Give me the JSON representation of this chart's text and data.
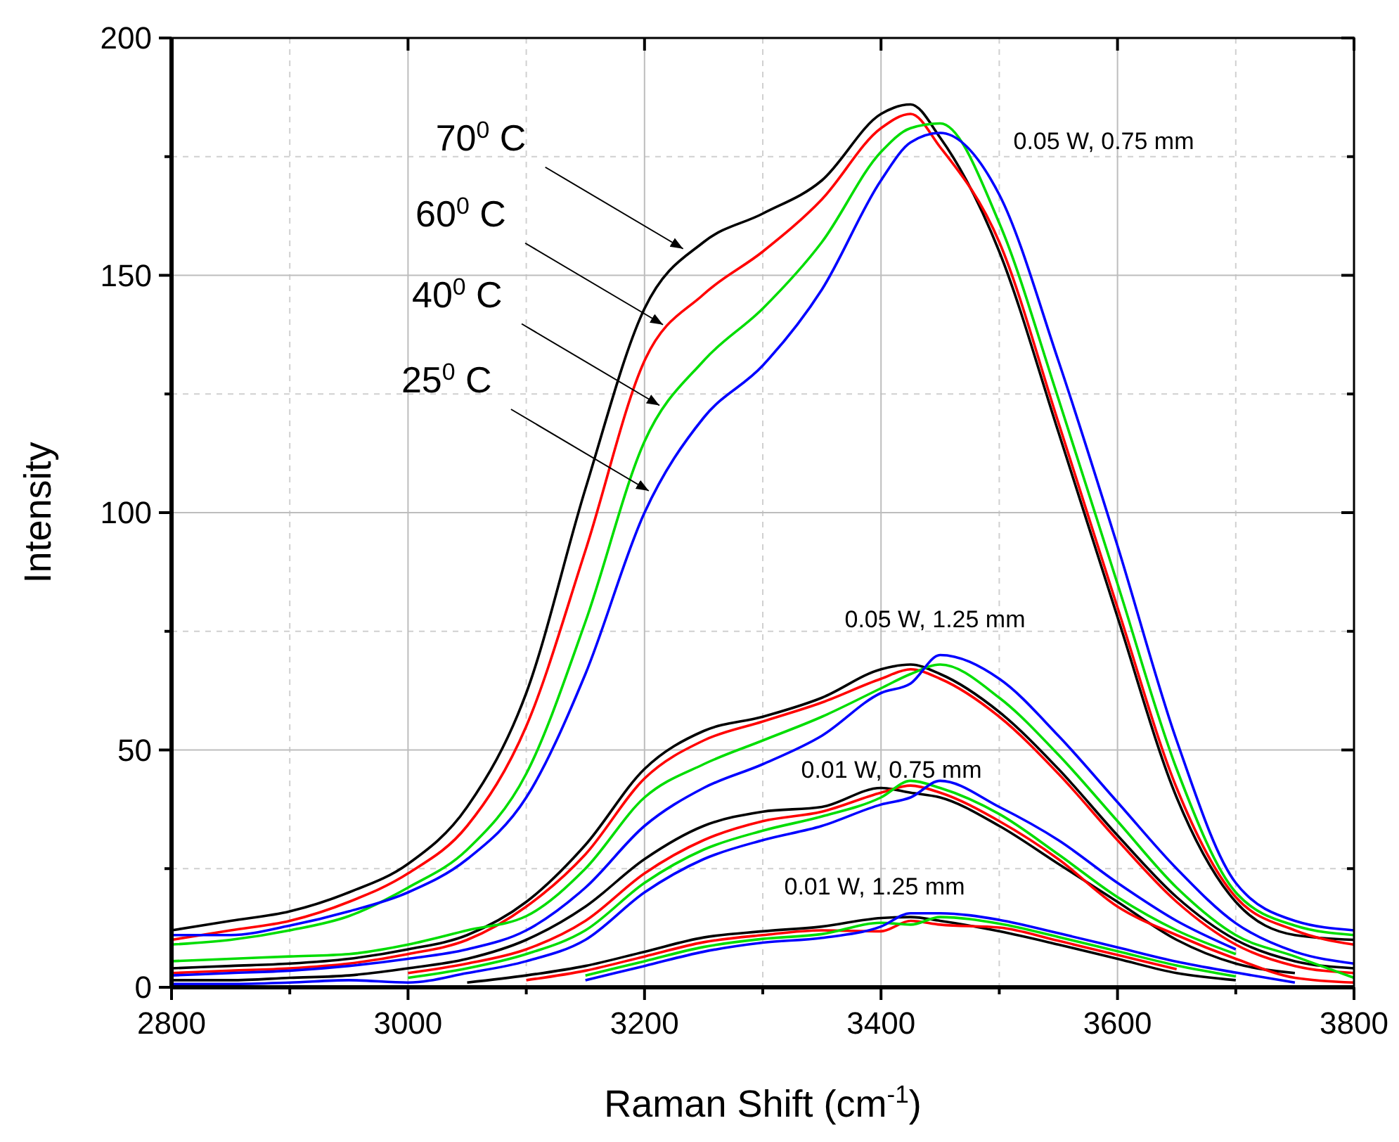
{
  "chart_data": {
    "type": "line",
    "xlabel": "Raman Shift (cm$^{-1}$)",
    "ylabel": "Intensity",
    "x": [
      2800,
      2850,
      2900,
      2950,
      3000,
      3050,
      3100,
      3150,
      3200,
      3250,
      3300,
      3350,
      3400,
      3425,
      3450,
      3500,
      3550,
      3600,
      3650,
      3700,
      3750,
      3800
    ],
    "xlim": [
      2800,
      3800
    ],
    "xticks": [
      2800,
      3000,
      3200,
      3400,
      3600,
      3800
    ],
    "ylim": [
      0,
      200
    ],
    "yticks": [
      0,
      50,
      100,
      150,
      200
    ],
    "grid": true,
    "marker": "none",
    "line_style": "solid",
    "series": [
      {
        "color": "#000000",
        "values": [
          12,
          14,
          16,
          20,
          26,
          38,
          62,
          105,
          143,
          157,
          163,
          170,
          184,
          186,
          179,
          155,
          117,
          78,
          40,
          18,
          11,
          10
        ]
      },
      {
        "color": "#ff0000",
        "values": [
          10,
          12,
          14,
          18,
          24,
          34,
          55,
          92,
          132,
          146,
          155,
          166,
          181,
          184,
          177,
          157,
          119,
          80,
          42,
          19,
          12,
          9
        ]
      },
      {
        "color": "#00dd00",
        "values": [
          9,
          10,
          12,
          15,
          21,
          29,
          45,
          77,
          115,
          132,
          143,
          157,
          176,
          181,
          182,
          161,
          124,
          85,
          46,
          20,
          13,
          11
        ]
      },
      {
        "color": "#0000ff",
        "values": [
          11,
          11,
          13,
          16,
          20,
          27,
          40,
          66,
          100,
          120,
          131,
          147,
          170,
          178,
          180,
          167,
          132,
          93,
          52,
          22,
          14,
          12
        ]
      },
      {
        "color": "#000000",
        "values": [
          4,
          4.5,
          5,
          6,
          8,
          11,
          18,
          30,
          46,
          54,
          57,
          61,
          67,
          68,
          66,
          58,
          46,
          32,
          19,
          10,
          5.5,
          4
        ]
      },
      {
        "color": "#ff0000",
        "values": [
          3,
          3.5,
          4,
          5,
          7,
          10,
          17,
          28,
          44,
          52,
          56,
          60,
          65,
          67,
          65,
          57,
          45,
          31,
          18,
          9,
          4.5,
          3
        ]
      },
      {
        "color": "#00dd00",
        "values": [
          5.5,
          6,
          6.5,
          7,
          9,
          12,
          15,
          25,
          40,
          47,
          52,
          57,
          63,
          66,
          68,
          61,
          49,
          35,
          21,
          11,
          6.5,
          2
        ]
      },
      {
        "color": "#0000ff",
        "values": [
          2.5,
          3,
          3.5,
          4.5,
          6,
          8,
          12,
          21,
          34,
          42,
          47,
          53,
          62,
          64,
          70,
          65,
          53,
          39,
          25,
          13.5,
          7.5,
          5
        ]
      },
      {
        "color": "#000000",
        "values": [
          1.5,
          1.5,
          2,
          2.5,
          4,
          6,
          10,
          17,
          27,
          34,
          37,
          38,
          42,
          41,
          40,
          34,
          26,
          18,
          10,
          5,
          3,
          null
        ]
      },
      {
        "color": "#ff0000",
        "values": [
          null,
          null,
          null,
          null,
          3,
          5,
          8,
          14,
          24,
          31,
          35,
          37,
          41,
          42.5,
          41,
          35,
          27,
          17,
          11,
          6,
          2,
          1
        ]
      },
      {
        "color": "#00dd00",
        "values": [
          null,
          null,
          null,
          null,
          2,
          4,
          7,
          12,
          22,
          29,
          33,
          36,
          40,
          43.5,
          42,
          36.5,
          28,
          19,
          12,
          7,
          null,
          null
        ]
      },
      {
        "color": "#0000ff",
        "values": [
          0.7,
          0.7,
          1,
          1.5,
          1,
          3,
          5.5,
          10,
          20,
          27,
          31,
          34,
          38.5,
          40,
          43.5,
          38,
          31,
          22,
          14,
          8,
          null,
          null
        ]
      },
      {
        "color": "#000000",
        "values": [
          null,
          null,
          null,
          null,
          null,
          1,
          2.5,
          4.5,
          7.5,
          10.5,
          11.8,
          12.8,
          14.6,
          14.8,
          14,
          11.8,
          9,
          6,
          3,
          1.5,
          null,
          null
        ]
      },
      {
        "color": "#ff0000",
        "values": [
          null,
          null,
          null,
          null,
          null,
          null,
          1.5,
          3.5,
          6.5,
          9.5,
          11,
          12,
          11.8,
          14,
          13.2,
          12.6,
          9.8,
          6.8,
          3.8,
          null,
          null,
          null
        ]
      },
      {
        "color": "#00dd00",
        "values": [
          null,
          null,
          null,
          null,
          null,
          null,
          null,
          2.5,
          5.5,
          8.5,
          10.2,
          11.2,
          13.6,
          13.2,
          14.8,
          13.4,
          10.6,
          7.6,
          4.6,
          2.3,
          null,
          null
        ]
      },
      {
        "color": "#0000ff",
        "values": [
          null,
          null,
          null,
          null,
          null,
          null,
          null,
          1.5,
          4.5,
          7.5,
          9.4,
          10.4,
          12.8,
          15.6,
          15.6,
          14.2,
          11.4,
          8.4,
          5.4,
          3.1,
          1,
          null
        ]
      }
    ],
    "annotations": [
      {
        "text": "70$^{0}$ C",
        "x": 3235,
        "y": 155
      },
      {
        "text": "60$^{0}$ C",
        "x": 3218,
        "y": 139
      },
      {
        "text": "40$^{0}$ C",
        "x": 3215,
        "y": 122
      },
      {
        "text": "25$^{0}$ C",
        "x": 3206,
        "y": 104
      },
      "0.05 W, 0.75 mm",
      "0.05 W, 1.25 mm",
      "0.01 W, 0.75 mm",
      "0.01 W, 1.25 mm"
    ]
  }
}
